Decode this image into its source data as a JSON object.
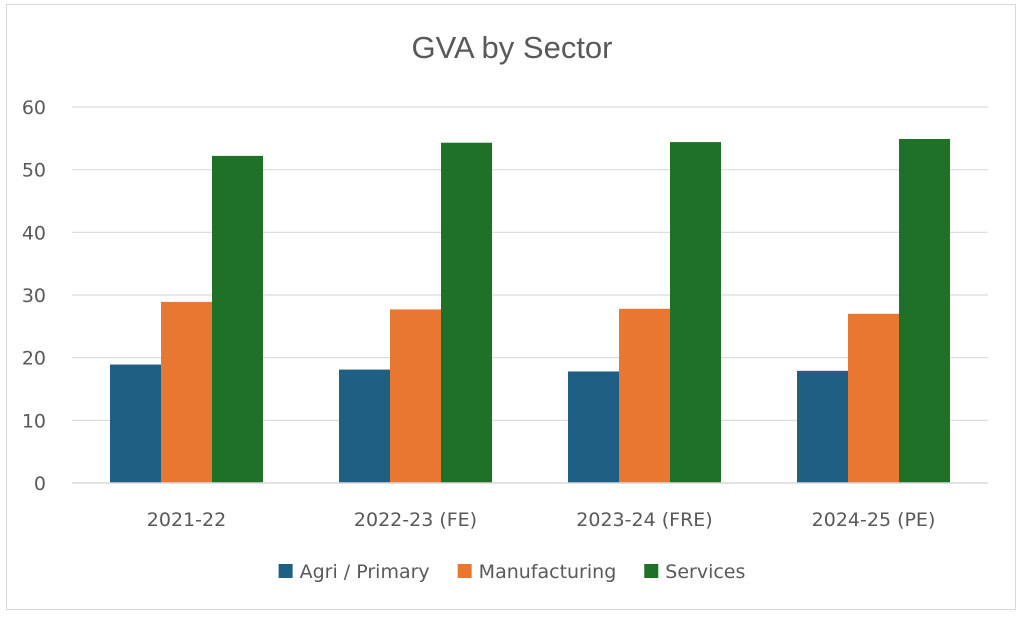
{
  "chart_data": {
    "type": "bar",
    "title": "GVA by Sector",
    "xlabel": "",
    "ylabel": "",
    "ylim": [
      0,
      60
    ],
    "yticks": [
      "0",
      "10",
      "20",
      "30",
      "40",
      "50",
      "60"
    ],
    "grid": true,
    "legend_position": "bottom",
    "categories": [
      "2021-22",
      "2022-23 (FE)",
      "2023-24 (FRE)",
      "2024-25 (PE)"
    ],
    "series": [
      {
        "name": "Agri / Primary",
        "color": "#1f5f84",
        "values": [
          18.9,
          18.1,
          17.8,
          17.9
        ]
      },
      {
        "name": "Manufacturing",
        "color": "#e87731",
        "values": [
          28.9,
          27.7,
          27.8,
          27.0
        ]
      },
      {
        "name": "Services",
        "color": "#1e7127",
        "values": [
          52.2,
          54.3,
          54.4,
          54.9
        ]
      }
    ]
  }
}
